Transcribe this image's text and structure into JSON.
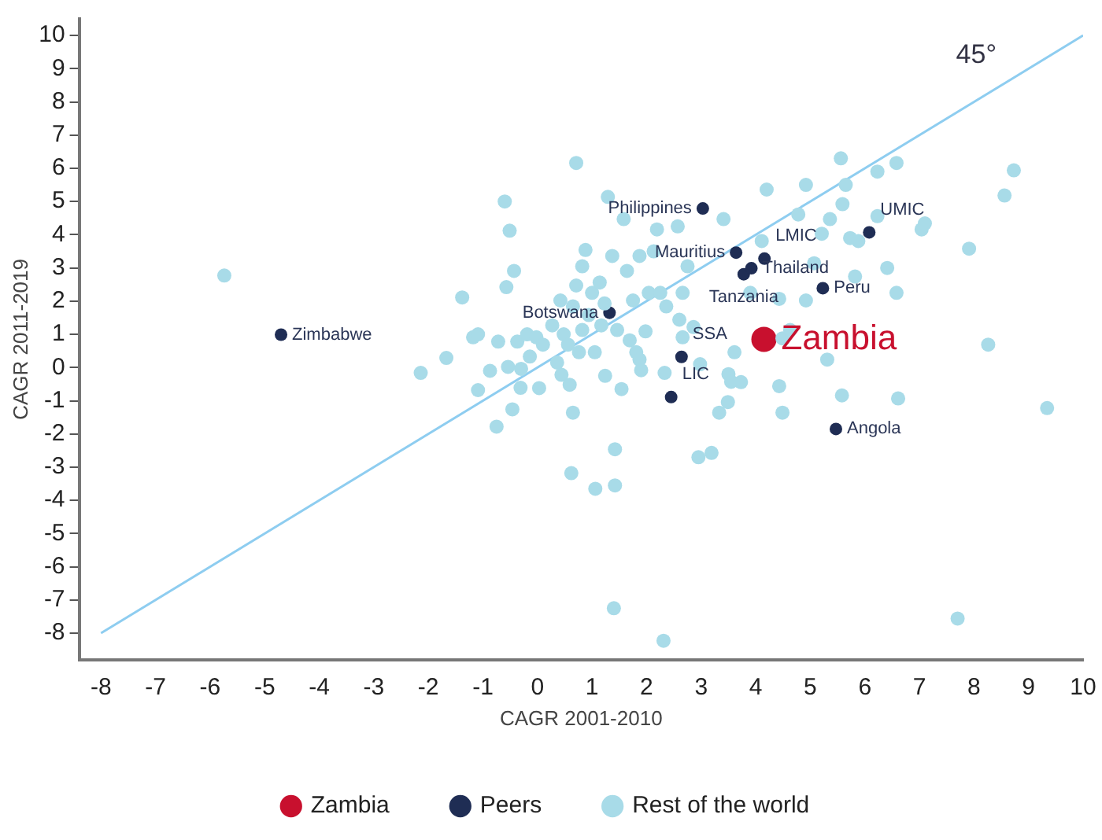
{
  "chart_data": {
    "type": "scatter",
    "xlabel": "CAGR 2001-2010",
    "ylabel": "CAGR 2011-2019",
    "xlim": [
      -8.4,
      10
    ],
    "ylim": [
      -8.8,
      10.5
    ],
    "xticks": [
      -8,
      -7,
      -6,
      -5,
      -4,
      -3,
      -2,
      -1,
      0,
      1,
      2,
      3,
      4,
      5,
      6,
      7,
      8,
      9,
      10
    ],
    "yticks": [
      -8,
      -7,
      -6,
      -5,
      -4,
      -3,
      -2,
      -1,
      0,
      1,
      2,
      3,
      4,
      5,
      6,
      7,
      8,
      9,
      10
    ],
    "grid": false,
    "legend": "bottom",
    "marker": "circle",
    "series": [
      {
        "name": "Zambia",
        "color": "#c8102e",
        "x": [
          4.15
        ],
        "values": [
          0.85
        ]
      },
      {
        "name": "Peers",
        "color": "#1f2d54",
        "x": [
          -4.7,
          3.03,
          3.64,
          4.16,
          3.78,
          3.92,
          6.08,
          5.23,
          1.32,
          2.64,
          2.45,
          5.47
        ],
        "values": [
          0.99,
          4.79,
          3.46,
          3.28,
          2.81,
          2.99,
          4.07,
          2.39,
          1.65,
          0.32,
          -0.89,
          -1.85
        ]
      },
      {
        "name": "Rest of the world",
        "color": "#a8dbe8",
        "x": [
          -5.74,
          -2.14,
          -1.67,
          -1.38,
          -1.18,
          -1.09,
          -0.72,
          -0.75,
          -1.09,
          -0.87,
          -0.54,
          -0.6,
          -0.51,
          -0.43,
          -0.57,
          -0.37,
          -0.46,
          -0.31,
          -0.3,
          -0.19,
          -0.14,
          -0.02,
          0.03,
          0.1,
          0.27,
          0.36,
          0.42,
          0.44,
          0.48,
          0.56,
          0.59,
          0.65,
          0.71,
          0.71,
          0.76,
          0.82,
          0.88,
          0.82,
          0.94,
          1.0,
          1.05,
          1.14,
          1.17,
          1.23,
          1.24,
          1.29,
          0.62,
          0.65,
          1.06,
          1.42,
          1.42,
          1.37,
          1.46,
          1.54,
          1.58,
          1.64,
          1.69,
          1.75,
          1.81,
          1.87,
          1.87,
          1.9,
          1.98,
          2.04,
          2.13,
          2.19,
          2.25,
          2.33,
          2.36,
          2.6,
          2.57,
          2.66,
          2.66,
          2.75,
          2.86,
          2.98,
          2.95,
          3.19,
          3.33,
          3.49,
          3.5,
          3.73,
          3.41,
          3.55,
          3.61,
          3.9,
          4.11,
          4.2,
          4.43,
          4.43,
          4.49,
          4.49,
          4.63,
          4.78,
          4.92,
          4.92,
          5.07,
          5.21,
          5.31,
          5.36,
          5.56,
          5.59,
          5.65,
          5.58,
          5.73,
          5.82,
          5.88,
          6.23,
          6.23,
          6.41,
          6.58,
          6.58,
          6.61,
          7.04,
          7.1,
          7.91,
          8.26,
          8.56,
          8.73,
          9.34,
          7.7,
          2.31,
          1.4
        ],
        "values": [
          2.77,
          -0.16,
          0.29,
          2.11,
          0.91,
          1.0,
          0.78,
          -1.78,
          -0.68,
          -0.1,
          0.02,
          5.0,
          4.12,
          2.91,
          2.42,
          0.78,
          -1.26,
          -0.61,
          -0.04,
          1.0,
          0.33,
          0.91,
          -0.62,
          0.69,
          1.27,
          0.15,
          2.02,
          -0.22,
          1.0,
          0.69,
          -0.52,
          1.84,
          6.16,
          2.47,
          0.46,
          3.05,
          3.54,
          1.13,
          1.58,
          2.25,
          0.46,
          2.56,
          1.27,
          1.93,
          -0.25,
          5.14,
          -3.18,
          -1.36,
          -3.65,
          -2.46,
          -3.55,
          3.36,
          1.13,
          -0.65,
          4.47,
          2.91,
          0.82,
          2.02,
          0.46,
          0.24,
          3.36,
          -0.08,
          1.09,
          2.25,
          3.5,
          4.16,
          2.25,
          -0.16,
          1.84,
          1.44,
          4.25,
          2.25,
          0.91,
          3.05,
          1.22,
          0.1,
          -2.7,
          -2.57,
          -1.36,
          -1.04,
          -0.2,
          -0.44,
          4.47,
          -0.43,
          0.46,
          2.25,
          3.81,
          5.36,
          -0.56,
          2.07,
          -1.36,
          0.88,
          1.13,
          4.61,
          5.5,
          2.02,
          3.14,
          4.03,
          0.24,
          4.47,
          6.3,
          4.92,
          5.5,
          -0.84,
          3.9,
          2.74,
          3.81,
          4.56,
          5.9,
          3.0,
          6.16,
          2.25,
          -0.93,
          4.16,
          4.34,
          3.58,
          0.69,
          5.18,
          5.94,
          -1.22,
          -7.56,
          -8.23,
          -7.25
        ]
      },
      {
        "type": "line",
        "marker": "none",
        "color": "#8ecdf0",
        "x": [
          -8,
          10
        ],
        "values": [
          -8,
          10
        ]
      }
    ],
    "annotations": [
      {
        "text": "Zambia",
        "x": 4.15,
        "y": 0.85
      },
      {
        "text": "Zimbabwe",
        "x": -4.7,
        "y": 0.99
      },
      {
        "text": "Philippines",
        "x": 3.03,
        "y": 4.79
      },
      {
        "text": "Mauritius",
        "x": 3.64,
        "y": 3.46
      },
      {
        "text": "LMIC",
        "x": 4.16,
        "y": 3.28
      },
      {
        "text": "Tanzania",
        "x": 3.78,
        "y": 2.81
      },
      {
        "text": "Thailand",
        "x": 3.92,
        "y": 2.99
      },
      {
        "text": "UMIC",
        "x": 6.08,
        "y": 4.07
      },
      {
        "text": "Peru",
        "x": 5.23,
        "y": 2.39
      },
      {
        "text": "Botswana",
        "x": 1.32,
        "y": 1.65
      },
      {
        "text": "SSA",
        "x": 2.64,
        "y": 0.32
      },
      {
        "text": "LIC",
        "x": 2.45,
        "y": -0.89
      },
      {
        "text": "Angola",
        "x": 5.47,
        "y": -1.85
      },
      "45°"
    ]
  }
}
